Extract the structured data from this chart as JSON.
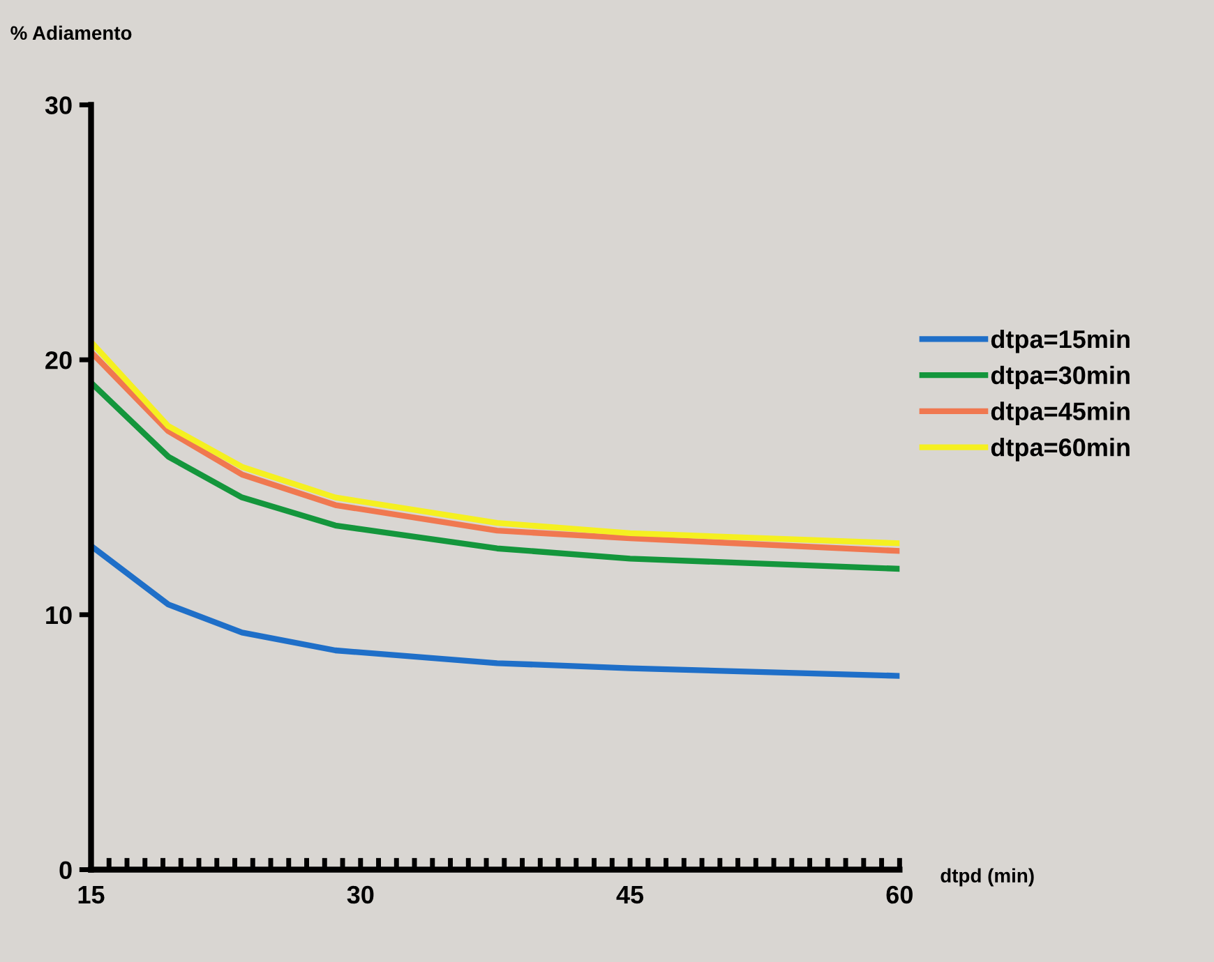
{
  "chart_data": {
    "type": "line",
    "ylabel": "% Adiamento",
    "xlabel": "dtpd (min)",
    "x": [
      15,
      19.3,
      23.4,
      28.6,
      37.6,
      45,
      60
    ],
    "xlim": [
      15,
      60
    ],
    "xticks": [
      15,
      30,
      45,
      60
    ],
    "ylim": [
      0,
      30
    ],
    "yticks": [
      0,
      10,
      20,
      30
    ],
    "grid": false,
    "legend": "right",
    "marker": "none",
    "line_style": "solid",
    "series": [
      {
        "name": "dtpa=15min",
        "color": "#1f6fc8",
        "values": [
          12.7,
          10.4,
          9.3,
          8.6,
          8.1,
          7.9,
          7.6
        ]
      },
      {
        "name": "dtpa=30min",
        "color": "#14963c",
        "values": [
          19.1,
          16.2,
          14.6,
          13.5,
          12.6,
          12.2,
          11.8
        ]
      },
      {
        "name": "dtpa=45min",
        "color": "#f07850",
        "values": [
          20.3,
          17.2,
          15.5,
          14.3,
          13.3,
          13.0,
          12.5
        ]
      },
      {
        "name": "dtpa=60min",
        "color": "#f5f020",
        "values": [
          20.7,
          17.4,
          15.8,
          14.6,
          13.6,
          13.2,
          12.8
        ]
      }
    ]
  }
}
